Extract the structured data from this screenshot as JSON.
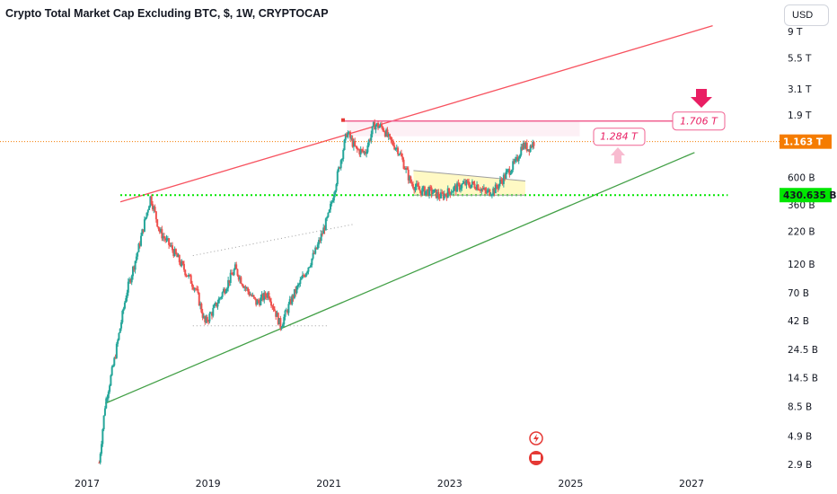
{
  "title": "Crypto Total Market Cap Excluding BTC, $, 1W, CRYPTOCAP",
  "currency_button": "USD",
  "colors": {
    "up": "#26a69a",
    "down": "#ef5350",
    "upper_channel": "#f7525f",
    "lower_channel": "#43a047",
    "support": "#00e600",
    "current_price": "#f57c00",
    "resistance_box": "#f06292",
    "triangle_fill": "#fff9c4"
  },
  "chart_data": {
    "type": "candlestick",
    "title": "Crypto Total Market Cap Excluding BTC, $, 1W, CRYPTOCAP",
    "y_scale": "log",
    "y_unit": "USD",
    "ylim": [
      2500000000,
      11000000000000
    ],
    "xlim": [
      2016.9,
      2027.6
    ],
    "y_ticks": [
      {
        "label": "9 T",
        "value": 9000000000000
      },
      {
        "label": "5.5 T",
        "value": 5500000000000
      },
      {
        "label": "3.1 T",
        "value": 3100000000000
      },
      {
        "label": "1.9 T",
        "value": 1900000000000
      },
      {
        "label": "600 B",
        "value": 600000000000
      },
      {
        "label": "360 B",
        "value": 360000000000
      },
      {
        "label": "220 B",
        "value": 220000000000
      },
      {
        "label": "120 B",
        "value": 120000000000
      },
      {
        "label": "70 B",
        "value": 70000000000
      },
      {
        "label": "42 B",
        "value": 42000000000
      },
      {
        "label": "24.5 B",
        "value": 24500000000
      },
      {
        "label": "14.5 B",
        "value": 14500000000
      },
      {
        "label": "8.5 B",
        "value": 8500000000
      },
      {
        "label": "4.9 B",
        "value": 4900000000
      },
      {
        "label": "2.9 B",
        "value": 2900000000
      }
    ],
    "x_ticks": [
      {
        "label": "2017",
        "value": 2017.0
      },
      {
        "label": "2019",
        "value": 2019.0
      },
      {
        "label": "2021",
        "value": 2021.0
      },
      {
        "label": "2023",
        "value": 2023.0
      },
      {
        "label": "2025",
        "value": 2025.0
      },
      {
        "label": "2027",
        "value": 2027.0
      }
    ],
    "current_price": {
      "label": "1.163 T",
      "value": 1163000000000
    },
    "support_level": {
      "label": "430.635 B",
      "value": 430635000000
    },
    "resistance_level": {
      "label": "1.706 T",
      "value": 1706000000000
    },
    "intermediate_level": {
      "label": "1.284 T",
      "value": 1284000000000
    },
    "price_path": [
      [
        2017.2,
        3000000000
      ],
      [
        2017.3,
        9000000000
      ],
      [
        2017.45,
        20000000000
      ],
      [
        2017.65,
        70000000000
      ],
      [
        2017.85,
        160000000000
      ],
      [
        2018.05,
        420000000000
      ],
      [
        2018.2,
        220000000000
      ],
      [
        2018.4,
        160000000000
      ],
      [
        2018.6,
        110000000000
      ],
      [
        2018.8,
        75000000000
      ],
      [
        2018.95,
        40000000000
      ],
      [
        2019.1,
        52000000000
      ],
      [
        2019.3,
        80000000000
      ],
      [
        2019.45,
        110000000000
      ],
      [
        2019.6,
        80000000000
      ],
      [
        2019.8,
        58000000000
      ],
      [
        2020.0,
        70000000000
      ],
      [
        2020.2,
        38000000000
      ],
      [
        2020.4,
        65000000000
      ],
      [
        2020.6,
        100000000000
      ],
      [
        2020.8,
        160000000000
      ],
      [
        2021.0,
        300000000000
      ],
      [
        2021.15,
        650000000000
      ],
      [
        2021.3,
        1400000000000
      ],
      [
        2021.45,
        1000000000000
      ],
      [
        2021.6,
        950000000000
      ],
      [
        2021.75,
        1600000000000
      ],
      [
        2021.9,
        1500000000000
      ],
      [
        2022.0,
        1200000000000
      ],
      [
        2022.15,
        1000000000000
      ],
      [
        2022.35,
        550000000000
      ],
      [
        2022.5,
        470000000000
      ],
      [
        2022.7,
        460000000000
      ],
      [
        2022.85,
        420000000000
      ],
      [
        2023.05,
        480000000000
      ],
      [
        2023.25,
        530000000000
      ],
      [
        2023.45,
        520000000000
      ],
      [
        2023.6,
        450000000000
      ],
      [
        2023.75,
        480000000000
      ],
      [
        2023.85,
        560000000000
      ],
      [
        2024.0,
        700000000000
      ],
      [
        2024.1,
        800000000000
      ],
      [
        2024.2,
        1100000000000
      ],
      [
        2024.3,
        1030000000000
      ],
      [
        2024.4,
        1163000000000
      ]
    ],
    "trendlines": [
      {
        "kind": "upper-channel",
        "from": [
          2017.55,
          380000000000
        ],
        "to": [
          2027.35,
          10000000000000
        ]
      },
      {
        "kind": "lower-channel",
        "from": [
          2017.3,
          9000000000
        ],
        "to": [
          2027.05,
          950000000000
        ]
      },
      {
        "kind": "support-horizontal",
        "from": [
          2017.55,
          430635000000
        ],
        "to": [
          2027.6,
          430635000000
        ]
      },
      {
        "kind": "triangle-upper",
        "from": [
          2022.4,
          680000000000
        ],
        "to": [
          2024.25,
          560000000000
        ]
      },
      {
        "kind": "triangle-lower",
        "from": [
          2022.4,
          430635000000
        ],
        "to": [
          2024.25,
          430635000000
        ]
      },
      {
        "kind": "dotted-resistance",
        "from": [
          2018.75,
          140000000000
        ],
        "to": [
          2021.4,
          250000000000
        ]
      },
      {
        "kind": "dotted-support",
        "from": [
          2018.75,
          38000000000
        ],
        "to": [
          2021.0,
          38000000000
        ]
      }
    ]
  }
}
